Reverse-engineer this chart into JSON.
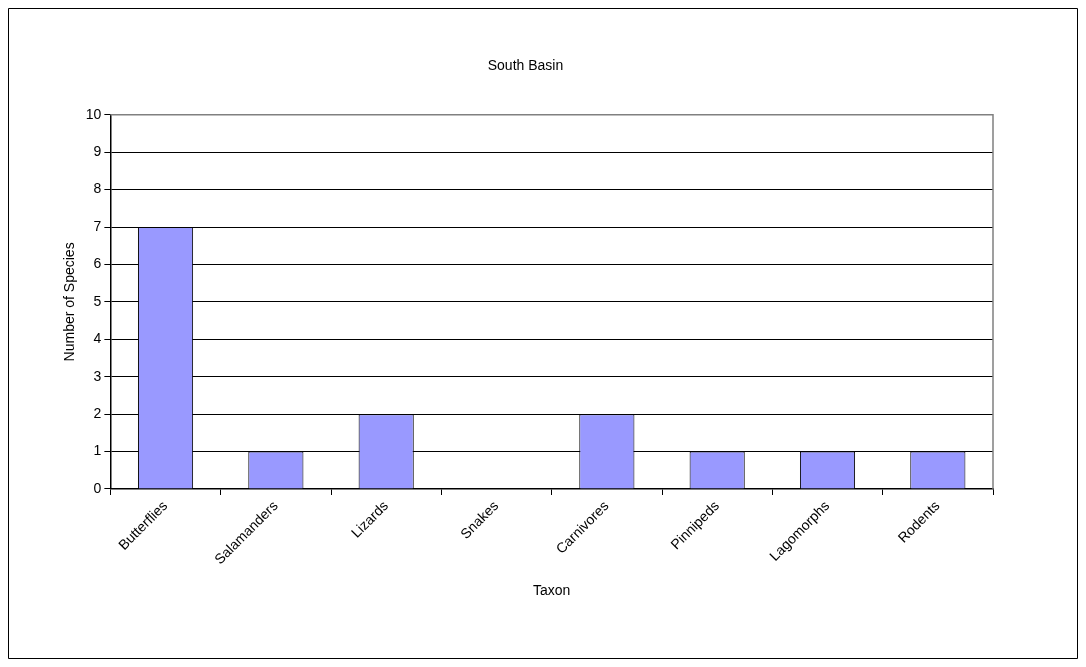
{
  "chart_data": {
    "type": "bar",
    "title": "South Basin",
    "xlabel": "Taxon",
    "ylabel": "Number of Species",
    "categories": [
      "Butterflies",
      "Salamanders",
      "Lizards",
      "Snakes",
      "Carnivores",
      "Pinnipeds",
      "Lagomorphs",
      "Rodents"
    ],
    "values": [
      7,
      1,
      2,
      0,
      2,
      1,
      1,
      1
    ],
    "color": "#9999ff",
    "ylim": [
      0,
      10
    ],
    "yticks": [
      0,
      1,
      2,
      3,
      4,
      5,
      6,
      7,
      8,
      9,
      10
    ],
    "grid": "y",
    "legend": false
  }
}
